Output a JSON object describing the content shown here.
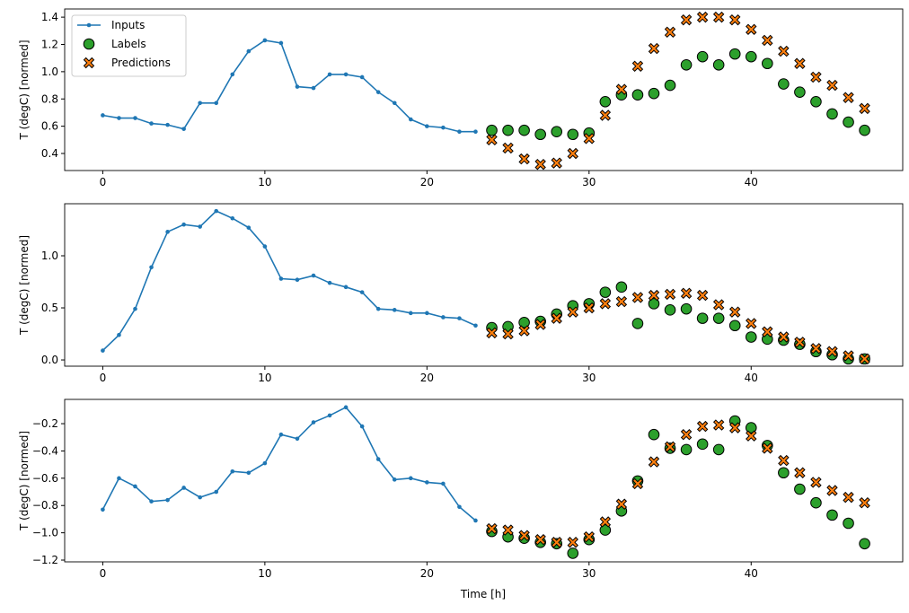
{
  "chart_data": {
    "type": "line",
    "xlabel": "Time [h]",
    "legend": {
      "placement": "top-left",
      "entries": [
        "Inputs",
        "Labels",
        "Predictions"
      ]
    },
    "colors": {
      "inputs": "#1f77b4",
      "labels": "#2ca02c",
      "predictions": "#ff7f0e"
    },
    "x_ticks": [
      0,
      10,
      20,
      30,
      40
    ],
    "xlim": [
      -2.35,
      49.35
    ],
    "panels": [
      {
        "ylabel": "T (degC) [normed]",
        "ylim": [
          0.275,
          1.46
        ],
        "y_ticks": [
          0.4,
          0.6,
          0.8,
          1.0,
          1.2,
          1.4
        ],
        "y_tick_labels": [
          "0.4",
          "0.6",
          "0.8",
          "1.0",
          "1.2",
          "1.4"
        ],
        "inputs": [
          0.68,
          0.66,
          0.66,
          0.62,
          0.61,
          0.58,
          0.77,
          0.77,
          0.98,
          1.15,
          1.23,
          1.21,
          0.89,
          0.88,
          0.98,
          0.98,
          0.96,
          0.85,
          0.77,
          0.65,
          0.6,
          0.59,
          0.56,
          0.56
        ],
        "labels": [
          0.57,
          0.57,
          0.57,
          0.54,
          0.56,
          0.54,
          0.55,
          0.78,
          0.83,
          0.83,
          0.84,
          0.9,
          1.05,
          1.11,
          1.05,
          1.13,
          1.11,
          1.06,
          0.91,
          0.85,
          0.78,
          0.69,
          0.63,
          0.57
        ],
        "predictions": [
          0.5,
          0.44,
          0.36,
          0.32,
          0.33,
          0.4,
          0.51,
          0.68,
          0.87,
          1.04,
          1.17,
          1.29,
          1.38,
          1.4,
          1.4,
          1.38,
          1.31,
          1.23,
          1.15,
          1.06,
          0.96,
          0.9,
          0.81,
          0.73
        ]
      },
      {
        "ylabel": "T (degC) [normed]",
        "ylim": [
          -0.06,
          1.5
        ],
        "y_ticks": [
          0.0,
          0.5,
          1.0
        ],
        "y_tick_labels": [
          "0.0",
          "0.5",
          "1.0"
        ],
        "inputs": [
          0.09,
          0.24,
          0.49,
          0.89,
          1.23,
          1.3,
          1.28,
          1.43,
          1.36,
          1.27,
          1.09,
          0.78,
          0.77,
          0.81,
          0.74,
          0.7,
          0.65,
          0.49,
          0.48,
          0.45,
          0.45,
          0.41,
          0.4,
          0.33
        ],
        "labels": [
          0.31,
          0.32,
          0.36,
          0.37,
          0.44,
          0.52,
          0.54,
          0.65,
          0.7,
          0.35,
          0.54,
          0.48,
          0.49,
          0.4,
          0.4,
          0.33,
          0.22,
          0.2,
          0.19,
          0.15,
          0.08,
          0.05,
          0.01,
          0.01
        ],
        "predictions": [
          0.26,
          0.25,
          0.28,
          0.34,
          0.4,
          0.46,
          0.5,
          0.54,
          0.56,
          0.6,
          0.62,
          0.63,
          0.64,
          0.62,
          0.53,
          0.46,
          0.35,
          0.27,
          0.22,
          0.17,
          0.11,
          0.08,
          0.04,
          0.01
        ]
      },
      {
        "ylabel": "T (degC) [normed]",
        "ylim": [
          -1.213,
          -0.022
        ],
        "y_ticks": [
          -1.2,
          -1.0,
          -0.8,
          -0.6,
          -0.4,
          -0.2
        ],
        "y_tick_labels": [
          "−1.2",
          "−1.0",
          "−0.8",
          "−0.6",
          "−0.4",
          "−0.2"
        ],
        "inputs": [
          -0.83,
          -0.6,
          -0.66,
          -0.77,
          -0.76,
          -0.67,
          -0.74,
          -0.7,
          -0.55,
          -0.56,
          -0.49,
          -0.28,
          -0.31,
          -0.19,
          -0.14,
          -0.08,
          -0.22,
          -0.46,
          -0.61,
          -0.6,
          -0.63,
          -0.64,
          -0.81,
          -0.91
        ],
        "labels": [
          -0.99,
          -1.03,
          -1.04,
          -1.07,
          -1.08,
          -1.15,
          -1.05,
          -0.98,
          -0.84,
          -0.62,
          -0.28,
          -0.38,
          -0.39,
          -0.35,
          -0.39,
          -0.18,
          -0.23,
          -0.36,
          -0.56,
          -0.68,
          -0.78,
          -0.87,
          -0.93,
          -1.08
        ],
        "predictions": [
          -0.97,
          -0.98,
          -1.02,
          -1.05,
          -1.07,
          -1.07,
          -1.03,
          -0.92,
          -0.79,
          -0.64,
          -0.48,
          -0.37,
          -0.28,
          -0.22,
          -0.21,
          -0.23,
          -0.29,
          -0.38,
          -0.47,
          -0.56,
          -0.63,
          -0.69,
          -0.74,
          -0.78
        ]
      }
    ]
  }
}
